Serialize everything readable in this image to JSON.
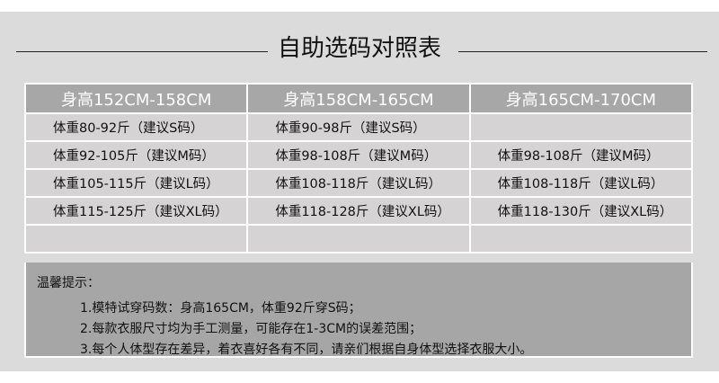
{
  "title": "自助选码对照表",
  "table": {
    "headers": [
      "身高152CM-158CM",
      "身高158CM-165CM",
      "身高165CM-170CM"
    ],
    "rows": [
      [
        "体重80-92斤（建议S码）",
        "体重90-98斤（建议S码）",
        ""
      ],
      [
        "体重92-105斤（建议M码）",
        "体重98-108斤（建议M码）",
        "体重98-108斤（建议M码）"
      ],
      [
        "体重105-115斤（建议L码）",
        "体重108-118斤（建议L码）",
        "体重108-118斤（建议L码）"
      ],
      [
        "体重115-125斤（建议XL码）",
        "体重118-128斤（建议XL码）",
        "体重118-130斤（建议XL码）"
      ],
      [
        "",
        "",
        ""
      ]
    ]
  },
  "notes": {
    "heading": "温馨提示：",
    "items": [
      "1.模特试穿码数：身高165CM，体重92斤穿S码；",
      "2.每款衣服尺寸均为手工测量，可能存在1-3CM的误差范围；",
      "3.每个人体型存在差异，着衣喜好各有不同，请亲们根据自身体型选择衣服大小。"
    ]
  }
}
